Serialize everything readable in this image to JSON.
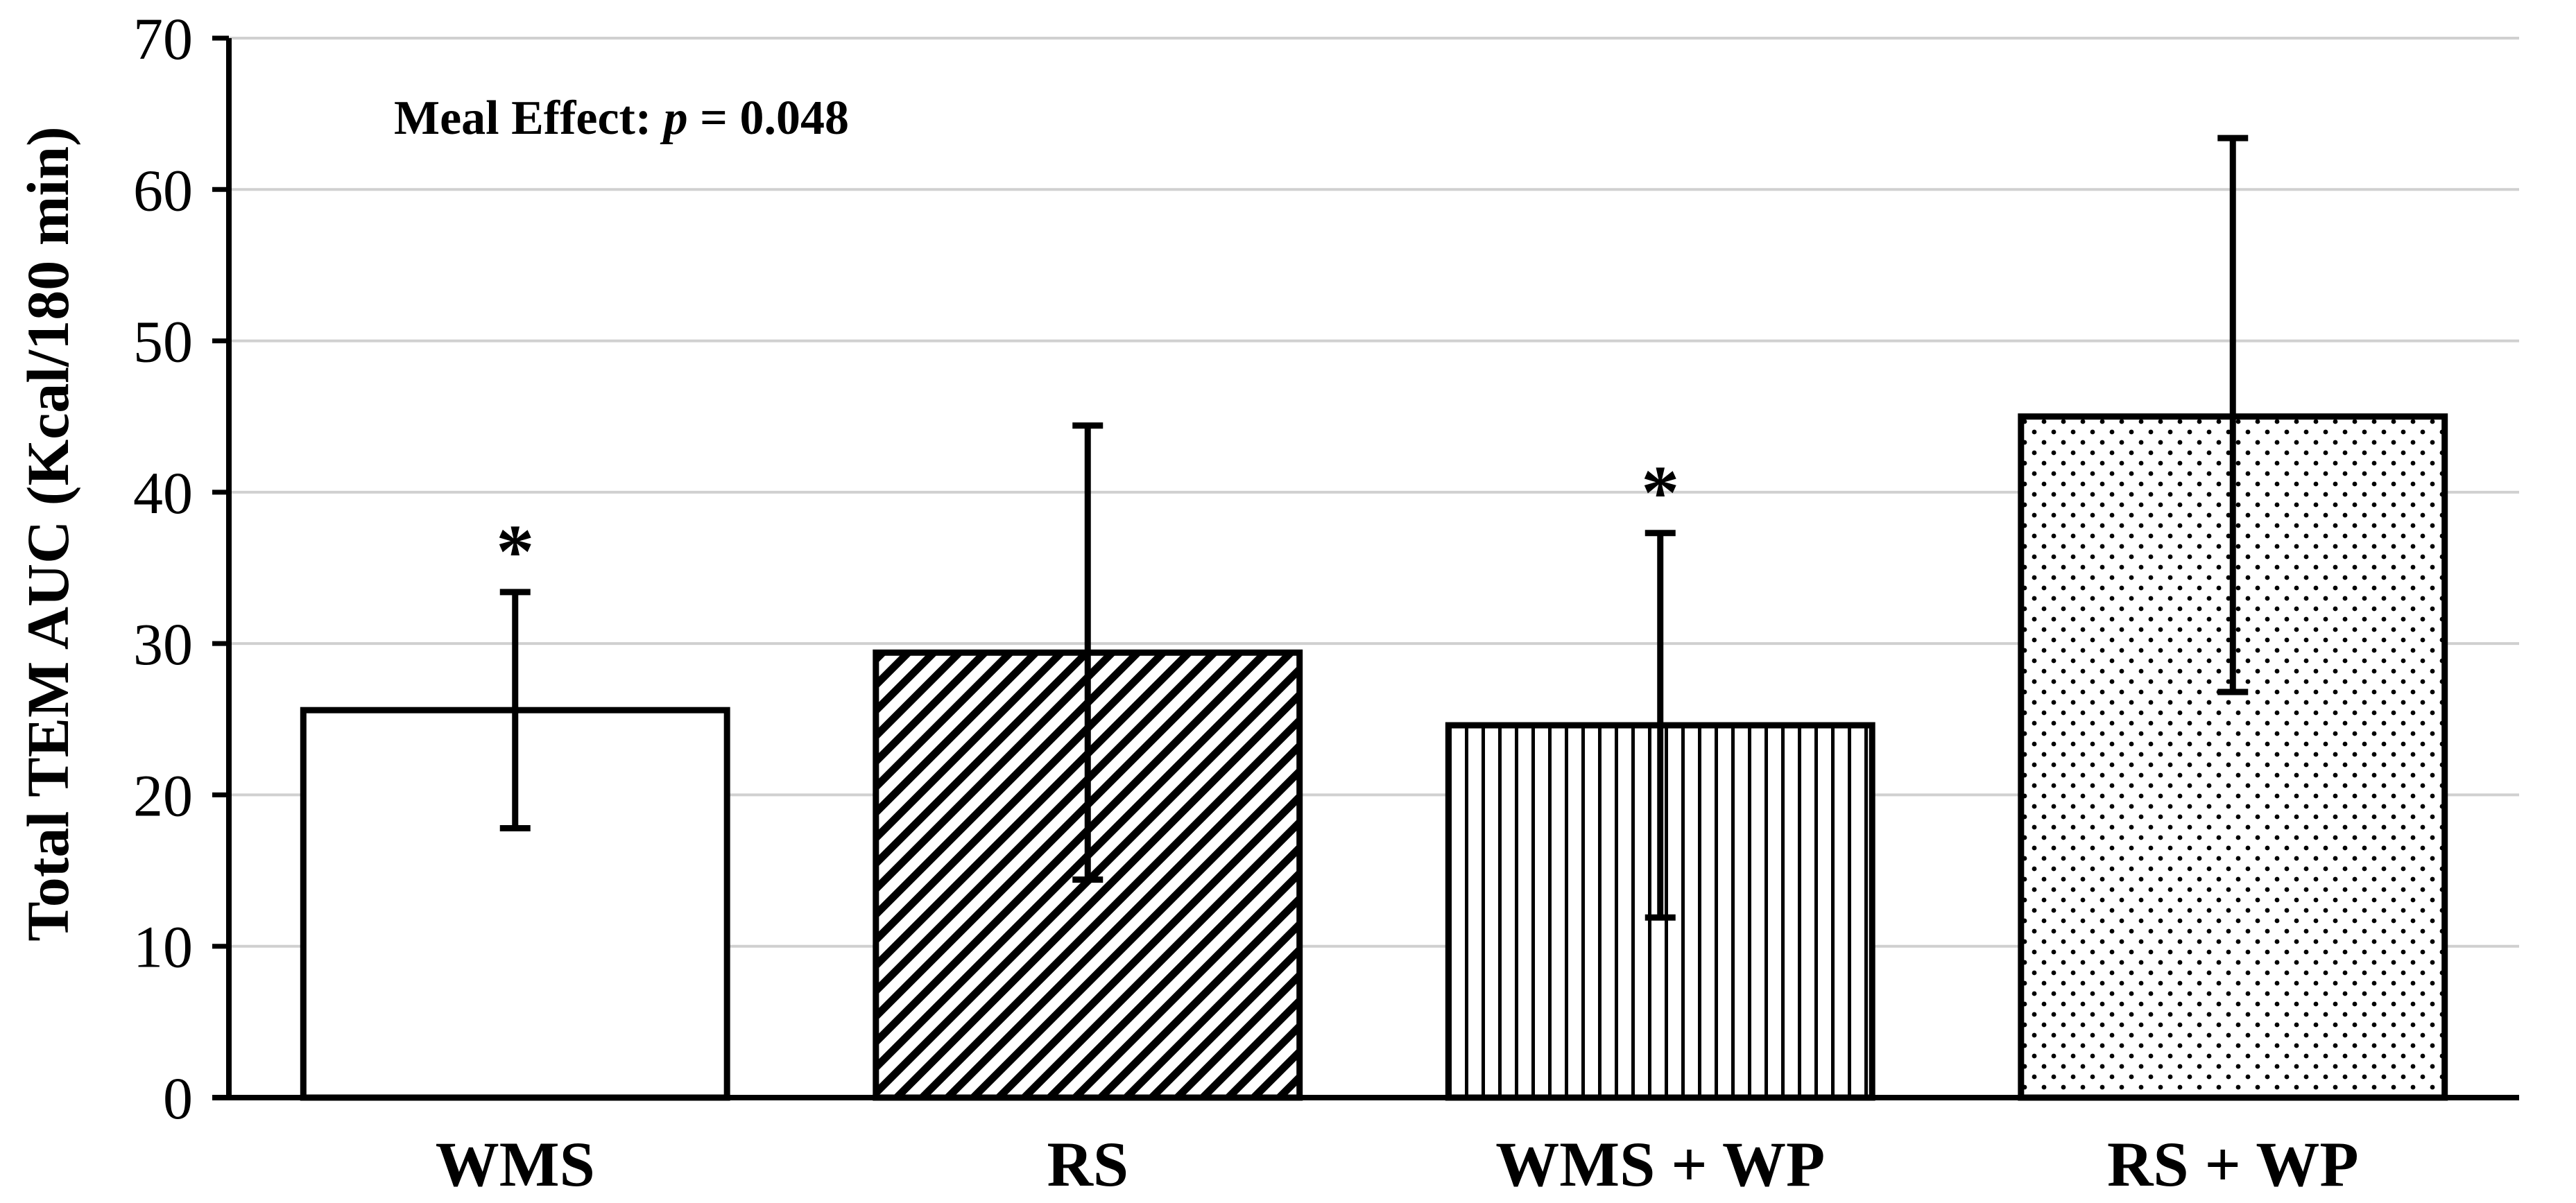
{
  "chart_data": {
    "type": "bar",
    "categories": [
      "WMS",
      "RS",
      "WMS + WP",
      "RS + WP"
    ],
    "values": [
      25.6,
      29.4,
      24.6,
      45.0
    ],
    "error_bars": [
      {
        "low": 17.8,
        "high": 33.4
      },
      {
        "low": 14.4,
        "high": 44.4
      },
      {
        "low": 11.9,
        "high": 37.3
      },
      {
        "low": 26.8,
        "high": 63.4
      }
    ],
    "bar_patterns": [
      "none",
      "diagonal-hatch",
      "vertical-lines",
      "dots"
    ],
    "significance_marks": [
      "*",
      "",
      "*",
      ""
    ],
    "ylabel": "Total TEM AUC (Kcal/180 min)",
    "xlabel": "",
    "ylim": [
      0,
      70
    ],
    "yticks": [
      0,
      10,
      20,
      30,
      40,
      50,
      60,
      70
    ],
    "grid": true,
    "annotation": {
      "prefix": "Meal Effect: ",
      "italic": "p",
      "suffix": " = 0.048"
    },
    "colors": {
      "bar_fill": "#ffffff",
      "bar_stroke": "#000000",
      "grid": "#d0d0d0",
      "axis": "#000000"
    }
  }
}
